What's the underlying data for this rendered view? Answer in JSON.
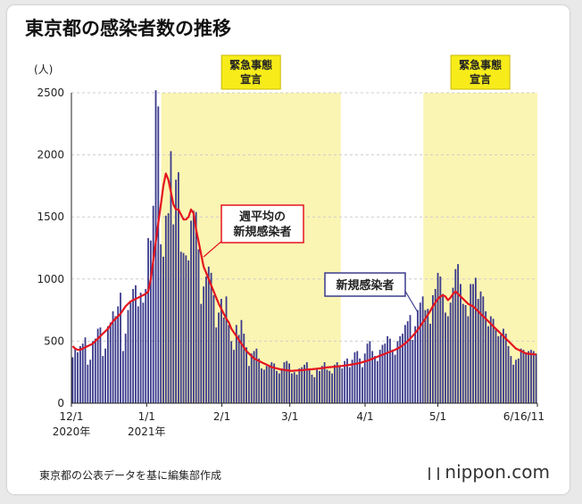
{
  "title": "東京都の感染者数の推移",
  "footnote": "東京都の公表データを基に編集部作成",
  "brand": "nippon.com",
  "chart_data": {
    "type": "bar",
    "ylabel": "(人)",
    "ylim": [
      0,
      2500
    ],
    "yticks": [
      0,
      500,
      1000,
      1500,
      2000,
      2500
    ],
    "xticks": [
      {
        "label": "12/1",
        "sub": "2020年",
        "day": 0
      },
      {
        "label": "1/1",
        "sub": "2021年",
        "day": 31
      },
      {
        "label": "2/1",
        "sub": "",
        "day": 62
      },
      {
        "label": "3/1",
        "sub": "",
        "day": 90
      },
      {
        "label": "4/1",
        "sub": "",
        "day": 121
      },
      {
        "label": "5/1",
        "sub": "",
        "day": 151
      },
      {
        "label": "6/16/11",
        "sub": "",
        "day": 192
      }
    ],
    "emergency_periods": [
      {
        "label_lines": [
          "緊急事態",
          "宣言"
        ],
        "start_day": 37,
        "end_day": 111
      },
      {
        "label_lines": [
          "緊急事態",
          "宣言"
        ],
        "start_day": 145,
        "end_day": 192
      }
    ],
    "annotations": [
      {
        "lines": [
          "週平均の",
          "新規感染者"
        ],
        "series": "weekly_avg"
      },
      {
        "lines": [
          "新規感染者"
        ],
        "series": "daily"
      }
    ],
    "daily_new_cases": [
      370,
      440,
      410,
      460,
      480,
      530,
      310,
      350,
      500,
      520,
      600,
      610,
      380,
      440,
      620,
      650,
      740,
      700,
      780,
      890,
      420,
      560,
      750,
      810,
      920,
      950,
      780,
      890,
      810,
      920,
      1330,
      1310,
      1590,
      2520,
      2390,
      1280,
      1180,
      1510,
      1530,
      2030,
      1440,
      1800,
      1860,
      1220,
      1210,
      1190,
      1150,
      1470,
      1550,
      1540,
      1240,
      800,
      940,
      1020,
      1100,
      1050,
      870,
      610,
      730,
      840,
      690,
      860,
      630,
      500,
      430,
      630,
      550,
      670,
      560,
      450,
      300,
      400,
      420,
      440,
      360,
      280,
      270,
      300,
      310,
      330,
      320,
      260,
      240,
      280,
      330,
      340,
      320,
      240,
      250,
      230,
      280,
      290,
      310,
      330,
      270,
      230,
      210,
      270,
      260,
      300,
      330,
      270,
      260,
      240,
      310,
      330,
      300,
      280,
      340,
      360,
      290,
      350,
      410,
      420,
      360,
      290,
      400,
      480,
      500,
      420,
      380,
      340,
      430,
      470,
      480,
      540,
      520,
      430,
      390,
      500,
      540,
      560,
      630,
      660,
      710,
      510,
      620,
      750,
      810,
      860,
      750,
      760,
      640,
      870,
      920,
      1050,
      1020,
      880,
      730,
      700,
      810,
      930,
      1080,
      1120,
      960,
      800,
      790,
      700,
      960,
      960,
      1010,
      840,
      900,
      860,
      740,
      620,
      700,
      680,
      600,
      540,
      550,
      600,
      560,
      460,
      380,
      310,
      350,
      360,
      440,
      430,
      410,
      420,
      430,
      420,
      400
    ],
    "weekly_avg": [
      460,
      440,
      430,
      430,
      440,
      450,
      460,
      470,
      480,
      500,
      520,
      540,
      560,
      580,
      600,
      630,
      660,
      680,
      700,
      720,
      750,
      780,
      800,
      820,
      830,
      840,
      850,
      860,
      870,
      880,
      900,
      1000,
      1150,
      1300,
      1450,
      1600,
      1750,
      1850,
      1800,
      1700,
      1600,
      1560,
      1560,
      1520,
      1480,
      1480,
      1500,
      1560,
      1530,
      1400,
      1300,
      1200,
      1100,
      1050,
      1000,
      950,
      900,
      850,
      800,
      760,
      720,
      680,
      650,
      600,
      570,
      540,
      510,
      480,
      450,
      420,
      400,
      380,
      360,
      350,
      340,
      330,
      320,
      310,
      300,
      290,
      285,
      280,
      275,
      270,
      268,
      265,
      262,
      260,
      262,
      264,
      265,
      266,
      268,
      270,
      272,
      274,
      276,
      278,
      280,
      282,
      285,
      288,
      290,
      292,
      294,
      296,
      298,
      300,
      303,
      306,
      309,
      312,
      316,
      320,
      324,
      330,
      336,
      343,
      350,
      358,
      366,
      374,
      382,
      390,
      398,
      406,
      414,
      422,
      430,
      440,
      452,
      466,
      482,
      500,
      520,
      542,
      566,
      592,
      620,
      650,
      680,
      712,
      744,
      780,
      810,
      840,
      860,
      870,
      860,
      830,
      850,
      880,
      900,
      880,
      860,
      840,
      820,
      800,
      790,
      780,
      760,
      740,
      720,
      700,
      680,
      660,
      640,
      620,
      600,
      580,
      560,
      540,
      520,
      500,
      480,
      460,
      440,
      430,
      420,
      410,
      400,
      398,
      396,
      394,
      392
    ]
  }
}
